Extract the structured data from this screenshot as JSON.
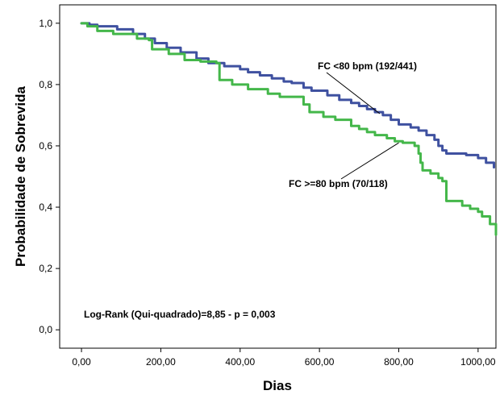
{
  "chart_data": {
    "type": "line",
    "step": true,
    "title": "",
    "xlabel": "Dias",
    "ylabel": "Probabilidade de Sobrevida",
    "xlim": [
      -55,
      1045
    ],
    "ylim": [
      -0.06,
      1.06
    ],
    "xticks": [
      0,
      200,
      400,
      600,
      800,
      1000
    ],
    "xtick_labels": [
      "0,00",
      "200,00",
      "400,00",
      "600,00",
      "800,00",
      "1000,00"
    ],
    "yticks": [
      0,
      0.2,
      0.4,
      0.6,
      0.8,
      1.0
    ],
    "ytick_labels": [
      "0,0",
      "0,2",
      "0,4",
      "0,6",
      "0,8",
      "1,0"
    ],
    "grid": false,
    "series": [
      {
        "name": "FC <80 bpm (192/441)",
        "color": "#3f51a0",
        "x": [
          0,
          20,
          40,
          90,
          130,
          160,
          185,
          215,
          250,
          290,
          320,
          360,
          400,
          420,
          450,
          480,
          510,
          530,
          560,
          580,
          620,
          650,
          680,
          700,
          720,
          740,
          760,
          780,
          800,
          830,
          850,
          870,
          890,
          900,
          910,
          920,
          970,
          1000,
          1020,
          1040
        ],
        "y": [
          1.0,
          0.995,
          0.99,
          0.98,
          0.965,
          0.95,
          0.935,
          0.92,
          0.905,
          0.885,
          0.87,
          0.86,
          0.85,
          0.84,
          0.83,
          0.82,
          0.81,
          0.805,
          0.79,
          0.78,
          0.765,
          0.75,
          0.74,
          0.73,
          0.72,
          0.71,
          0.7,
          0.685,
          0.67,
          0.66,
          0.65,
          0.635,
          0.62,
          0.6,
          0.585,
          0.575,
          0.57,
          0.56,
          0.545,
          0.53
        ]
      },
      {
        "name": "FC >=80 bpm (70/118)",
        "color": "#44b74a",
        "x": [
          0,
          15,
          40,
          80,
          140,
          170,
          178,
          220,
          260,
          300,
          340,
          348,
          380,
          420,
          470,
          500,
          560,
          575,
          610,
          640,
          680,
          700,
          720,
          740,
          770,
          790,
          810,
          840,
          850,
          855,
          860,
          880,
          900,
          910,
          920,
          960,
          980,
          1000,
          1010,
          1030,
          1045
        ],
        "y": [
          1.0,
          0.99,
          0.975,
          0.965,
          0.95,
          0.945,
          0.915,
          0.9,
          0.88,
          0.875,
          0.87,
          0.815,
          0.8,
          0.785,
          0.77,
          0.76,
          0.735,
          0.71,
          0.695,
          0.685,
          0.665,
          0.655,
          0.645,
          0.635,
          0.625,
          0.615,
          0.61,
          0.6,
          0.575,
          0.545,
          0.52,
          0.51,
          0.495,
          0.485,
          0.42,
          0.405,
          0.395,
          0.385,
          0.37,
          0.345,
          0.31
        ]
      }
    ],
    "annotations": [
      {
        "text": "FC <80 bpm (192/441)",
        "x": 752,
        "y": 0.705,
        "series": 0
      },
      {
        "text": "FC >=80 bpm (70/118)",
        "x": 800,
        "y": 0.61,
        "series": 1
      }
    ],
    "note": "Log-Rank (Qui-quadrado)=8,85 - p = 0,003"
  }
}
